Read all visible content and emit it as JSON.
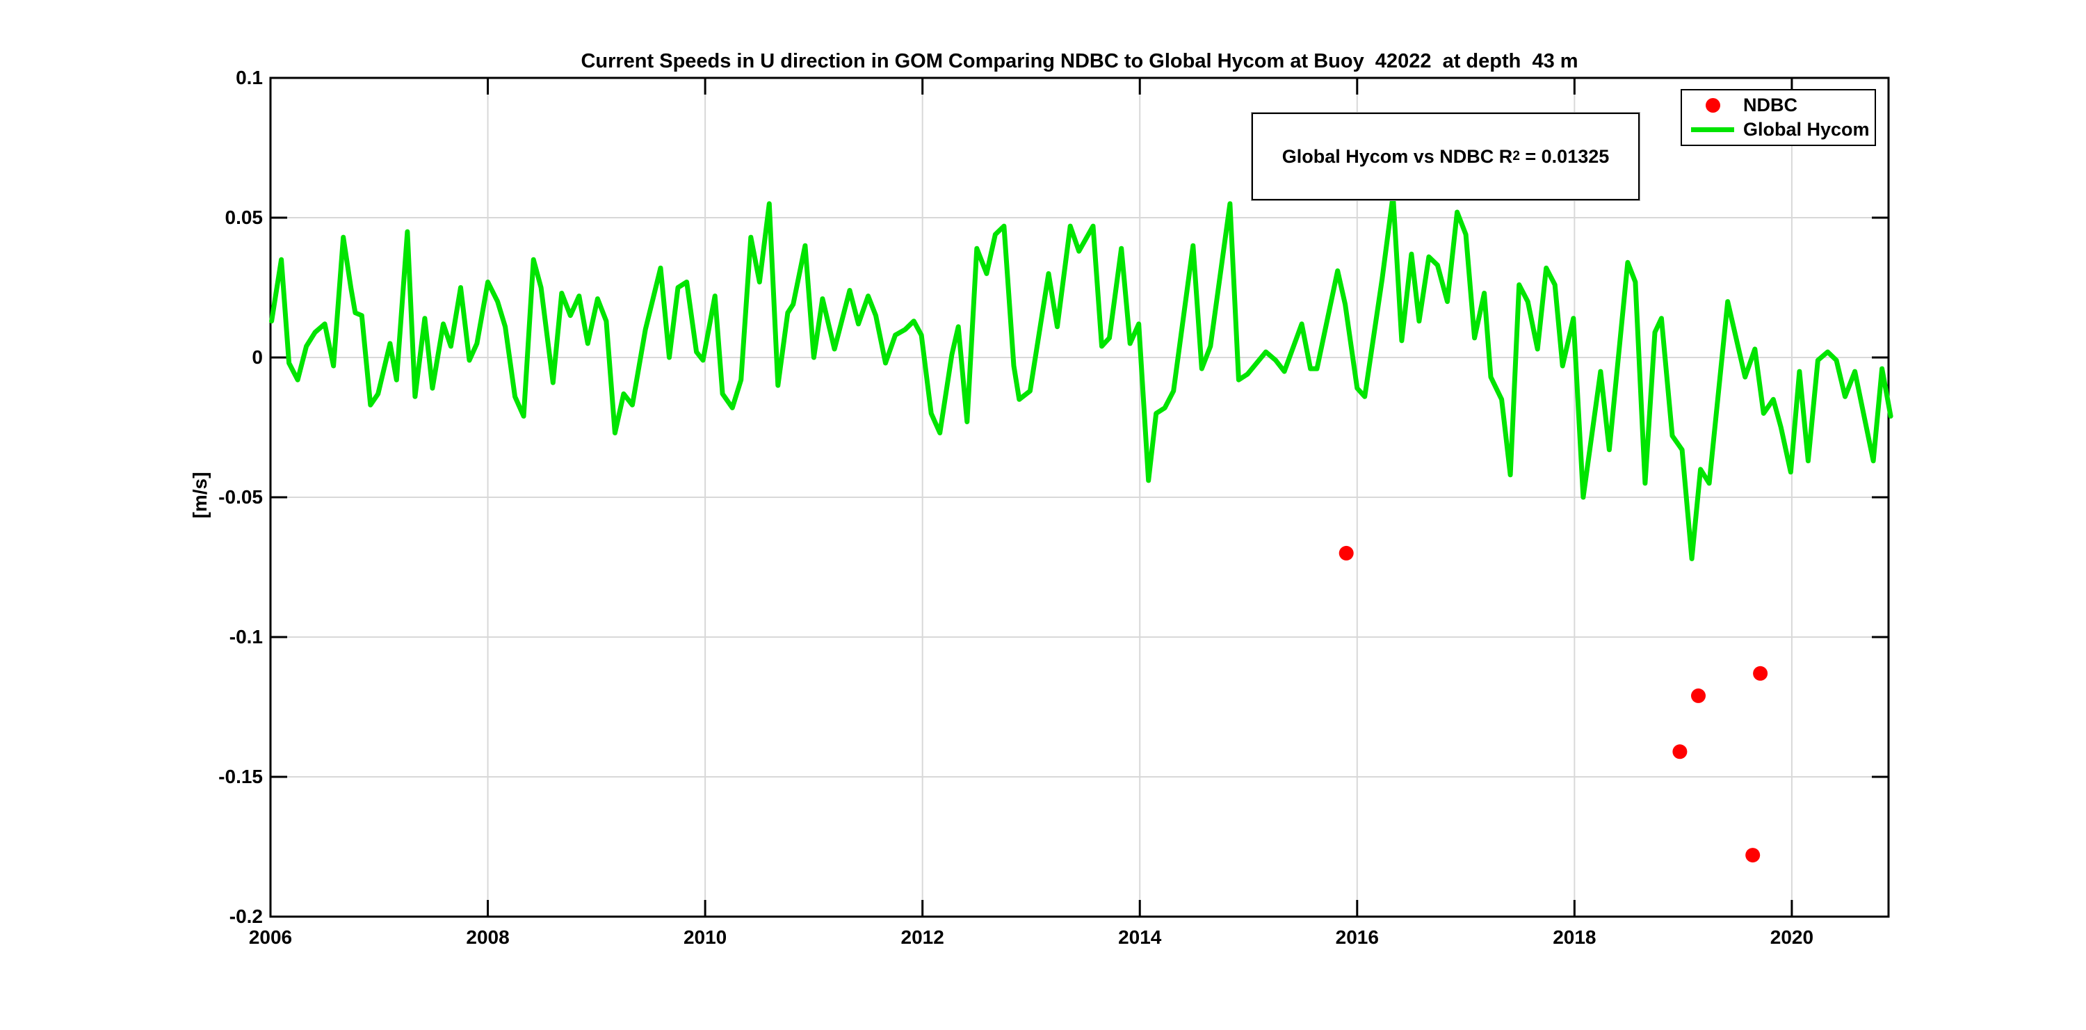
{
  "chart_data": {
    "type": "line+scatter",
    "title": "Current Speeds in U direction in GOM Comparing NDBC to Global Hycom at Buoy  42022  at depth  43 m",
    "xlabel": "",
    "ylabel": "[m/s]",
    "xlim": [
      2006,
      2020.89
    ],
    "ylim": [
      -0.2,
      0.1
    ],
    "grid": true,
    "background": "#ffffff",
    "grid_color": "#d8d8d8",
    "axis_color": "#000000",
    "x_ticks": [
      2006,
      2008,
      2010,
      2012,
      2014,
      2016,
      2018,
      2020
    ],
    "x_tick_labels": [
      "2006",
      "2008",
      "2010",
      "2012",
      "2014",
      "2016",
      "2018",
      "2020"
    ],
    "y_ticks": [
      0.1,
      0.05,
      0,
      -0.05,
      -0.1,
      -0.15,
      -0.2
    ],
    "y_tick_labels": [
      "0.1",
      "0.05",
      "0",
      "-0.05",
      "-0.1",
      "-0.15",
      "-0.2"
    ],
    "annotation": {
      "text_before_sup": "Global Hycom vs NDBC R",
      "sup": "2",
      "text_after_sup": " = 0.01325"
    },
    "legend": {
      "position": "top-right",
      "entries": [
        {
          "label": "NDBC",
          "marker": "dot",
          "color": "#ff0000"
        },
        {
          "label": "Global Hycom",
          "marker": "line",
          "color": "#00e400"
        }
      ]
    },
    "series": [
      {
        "name": "Global Hycom",
        "type": "line",
        "color": "#00e400",
        "line_width": 7,
        "points": [
          [
            2006.01,
            0.013
          ],
          [
            2006.1,
            0.035
          ],
          [
            2006.17,
            -0.002
          ],
          [
            2006.25,
            -0.008
          ],
          [
            2006.33,
            0.004
          ],
          [
            2006.41,
            0.009
          ],
          [
            2006.5,
            0.012
          ],
          [
            2006.58,
            -0.003
          ],
          [
            2006.67,
            0.043
          ],
          [
            2006.74,
            0.025
          ],
          [
            2006.78,
            0.016
          ],
          [
            2006.84,
            0.015
          ],
          [
            2006.92,
            -0.017
          ],
          [
            2006.99,
            -0.013
          ],
          [
            2007.1,
            0.005
          ],
          [
            2007.16,
            -0.008
          ],
          [
            2007.26,
            0.045
          ],
          [
            2007.33,
            -0.014
          ],
          [
            2007.42,
            0.014
          ],
          [
            2007.49,
            -0.011
          ],
          [
            2007.59,
            0.012
          ],
          [
            2007.66,
            0.004
          ],
          [
            2007.75,
            0.025
          ],
          [
            2007.83,
            -0.001
          ],
          [
            2007.9,
            0.005
          ],
          [
            2008.0,
            0.027
          ],
          [
            2008.09,
            0.02
          ],
          [
            2008.16,
            0.011
          ],
          [
            2008.25,
            -0.014
          ],
          [
            2008.33,
            -0.021
          ],
          [
            2008.42,
            0.035
          ],
          [
            2008.49,
            0.025
          ],
          [
            2008.6,
            -0.009
          ],
          [
            2008.68,
            0.023
          ],
          [
            2008.76,
            0.015
          ],
          [
            2008.84,
            0.022
          ],
          [
            2008.92,
            0.005
          ],
          [
            2009.01,
            0.021
          ],
          [
            2009.09,
            0.013
          ],
          [
            2009.17,
            -0.027
          ],
          [
            2009.25,
            -0.013
          ],
          [
            2009.33,
            -0.017
          ],
          [
            2009.45,
            0.01
          ],
          [
            2009.59,
            0.032
          ],
          [
            2009.67,
            0.0
          ],
          [
            2009.75,
            0.025
          ],
          [
            2009.83,
            0.027
          ],
          [
            2009.92,
            0.002
          ],
          [
            2009.98,
            -0.001
          ],
          [
            2010.09,
            0.022
          ],
          [
            2010.16,
            -0.013
          ],
          [
            2010.25,
            -0.018
          ],
          [
            2010.33,
            -0.008
          ],
          [
            2010.42,
            0.043
          ],
          [
            2010.5,
            0.027
          ],
          [
            2010.59,
            0.055
          ],
          [
            2010.67,
            -0.01
          ],
          [
            2010.76,
            0.016
          ],
          [
            2010.81,
            0.019
          ],
          [
            2010.92,
            0.04
          ],
          [
            2011.0,
            0.0
          ],
          [
            2011.08,
            0.021
          ],
          [
            2011.19,
            0.003
          ],
          [
            2011.33,
            0.024
          ],
          [
            2011.41,
            0.012
          ],
          [
            2011.5,
            0.022
          ],
          [
            2011.57,
            0.015
          ],
          [
            2011.66,
            -0.002
          ],
          [
            2011.75,
            0.008
          ],
          [
            2011.84,
            0.01
          ],
          [
            2011.92,
            0.013
          ],
          [
            2011.99,
            0.008
          ],
          [
            2012.08,
            -0.02
          ],
          [
            2012.16,
            -0.027
          ],
          [
            2012.27,
            0.001
          ],
          [
            2012.33,
            0.011
          ],
          [
            2012.41,
            -0.023
          ],
          [
            2012.5,
            0.039
          ],
          [
            2012.59,
            0.03
          ],
          [
            2012.67,
            0.044
          ],
          [
            2012.75,
            0.047
          ],
          [
            2012.84,
            -0.003
          ],
          [
            2012.89,
            -0.015
          ],
          [
            2012.99,
            -0.012
          ],
          [
            2013.16,
            0.03
          ],
          [
            2013.24,
            0.011
          ],
          [
            2013.36,
            0.047
          ],
          [
            2013.44,
            0.038
          ],
          [
            2013.57,
            0.047
          ],
          [
            2013.65,
            0.004
          ],
          [
            2013.72,
            0.007
          ],
          [
            2013.83,
            0.039
          ],
          [
            2013.91,
            0.005
          ],
          [
            2013.99,
            0.012
          ],
          [
            2014.08,
            -0.044
          ],
          [
            2014.15,
            -0.02
          ],
          [
            2014.23,
            -0.018
          ],
          [
            2014.31,
            -0.012
          ],
          [
            2014.49,
            0.04
          ],
          [
            2014.57,
            -0.004
          ],
          [
            2014.65,
            0.004
          ],
          [
            2014.83,
            0.055
          ],
          [
            2014.91,
            -0.008
          ],
          [
            2014.99,
            -0.006
          ],
          [
            2015.16,
            0.002
          ],
          [
            2015.25,
            -0.001
          ],
          [
            2015.33,
            -0.005
          ],
          [
            2015.49,
            0.012
          ],
          [
            2015.57,
            -0.004
          ],
          [
            2015.63,
            -0.004
          ],
          [
            2015.82,
            0.031
          ],
          [
            2015.89,
            0.019
          ],
          [
            2016.0,
            -0.011
          ],
          [
            2016.07,
            -0.014
          ],
          [
            2016.23,
            0.028
          ],
          [
            2016.33,
            0.058
          ],
          [
            2016.41,
            0.006
          ],
          [
            2016.5,
            0.037
          ],
          [
            2016.57,
            0.013
          ],
          [
            2016.66,
            0.036
          ],
          [
            2016.74,
            0.033
          ],
          [
            2016.83,
            0.02
          ],
          [
            2016.92,
            0.052
          ],
          [
            2017.0,
            0.044
          ],
          [
            2017.08,
            0.007
          ],
          [
            2017.17,
            0.023
          ],
          [
            2017.23,
            -0.007
          ],
          [
            2017.33,
            -0.015
          ],
          [
            2017.41,
            -0.042
          ],
          [
            2017.49,
            0.026
          ],
          [
            2017.57,
            0.02
          ],
          [
            2017.66,
            0.003
          ],
          [
            2017.74,
            0.032
          ],
          [
            2017.82,
            0.026
          ],
          [
            2017.89,
            -0.003
          ],
          [
            2017.99,
            0.014
          ],
          [
            2018.08,
            -0.05
          ],
          [
            2018.24,
            -0.005
          ],
          [
            2018.32,
            -0.033
          ],
          [
            2018.49,
            0.034
          ],
          [
            2018.56,
            0.027
          ],
          [
            2018.65,
            -0.045
          ],
          [
            2018.74,
            0.009
          ],
          [
            2018.8,
            0.014
          ],
          [
            2018.9,
            -0.028
          ],
          [
            2018.99,
            -0.033
          ],
          [
            2019.08,
            -0.072
          ],
          [
            2019.16,
            -0.04
          ],
          [
            2019.24,
            -0.045
          ],
          [
            2019.41,
            0.02
          ],
          [
            2019.57,
            -0.007
          ],
          [
            2019.66,
            0.003
          ],
          [
            2019.74,
            -0.02
          ],
          [
            2019.83,
            -0.015
          ],
          [
            2019.9,
            -0.025
          ],
          [
            2019.99,
            -0.041
          ],
          [
            2020.07,
            -0.005
          ],
          [
            2020.15,
            -0.037
          ],
          [
            2020.24,
            -0.001
          ],
          [
            2020.33,
            0.002
          ],
          [
            2020.41,
            -0.001
          ],
          [
            2020.49,
            -0.014
          ],
          [
            2020.58,
            -0.005
          ],
          [
            2020.75,
            -0.037
          ],
          [
            2020.83,
            -0.004
          ],
          [
            2020.91,
            -0.021
          ]
        ]
      },
      {
        "name": "NDBC",
        "type": "scatter",
        "color": "#ff0000",
        "marker_radius": 10.5,
        "points": [
          [
            2015.9,
            -0.07
          ],
          [
            2018.97,
            -0.141
          ],
          [
            2019.14,
            -0.121
          ],
          [
            2019.64,
            -0.178
          ],
          [
            2019.71,
            -0.113
          ]
        ]
      }
    ]
  }
}
